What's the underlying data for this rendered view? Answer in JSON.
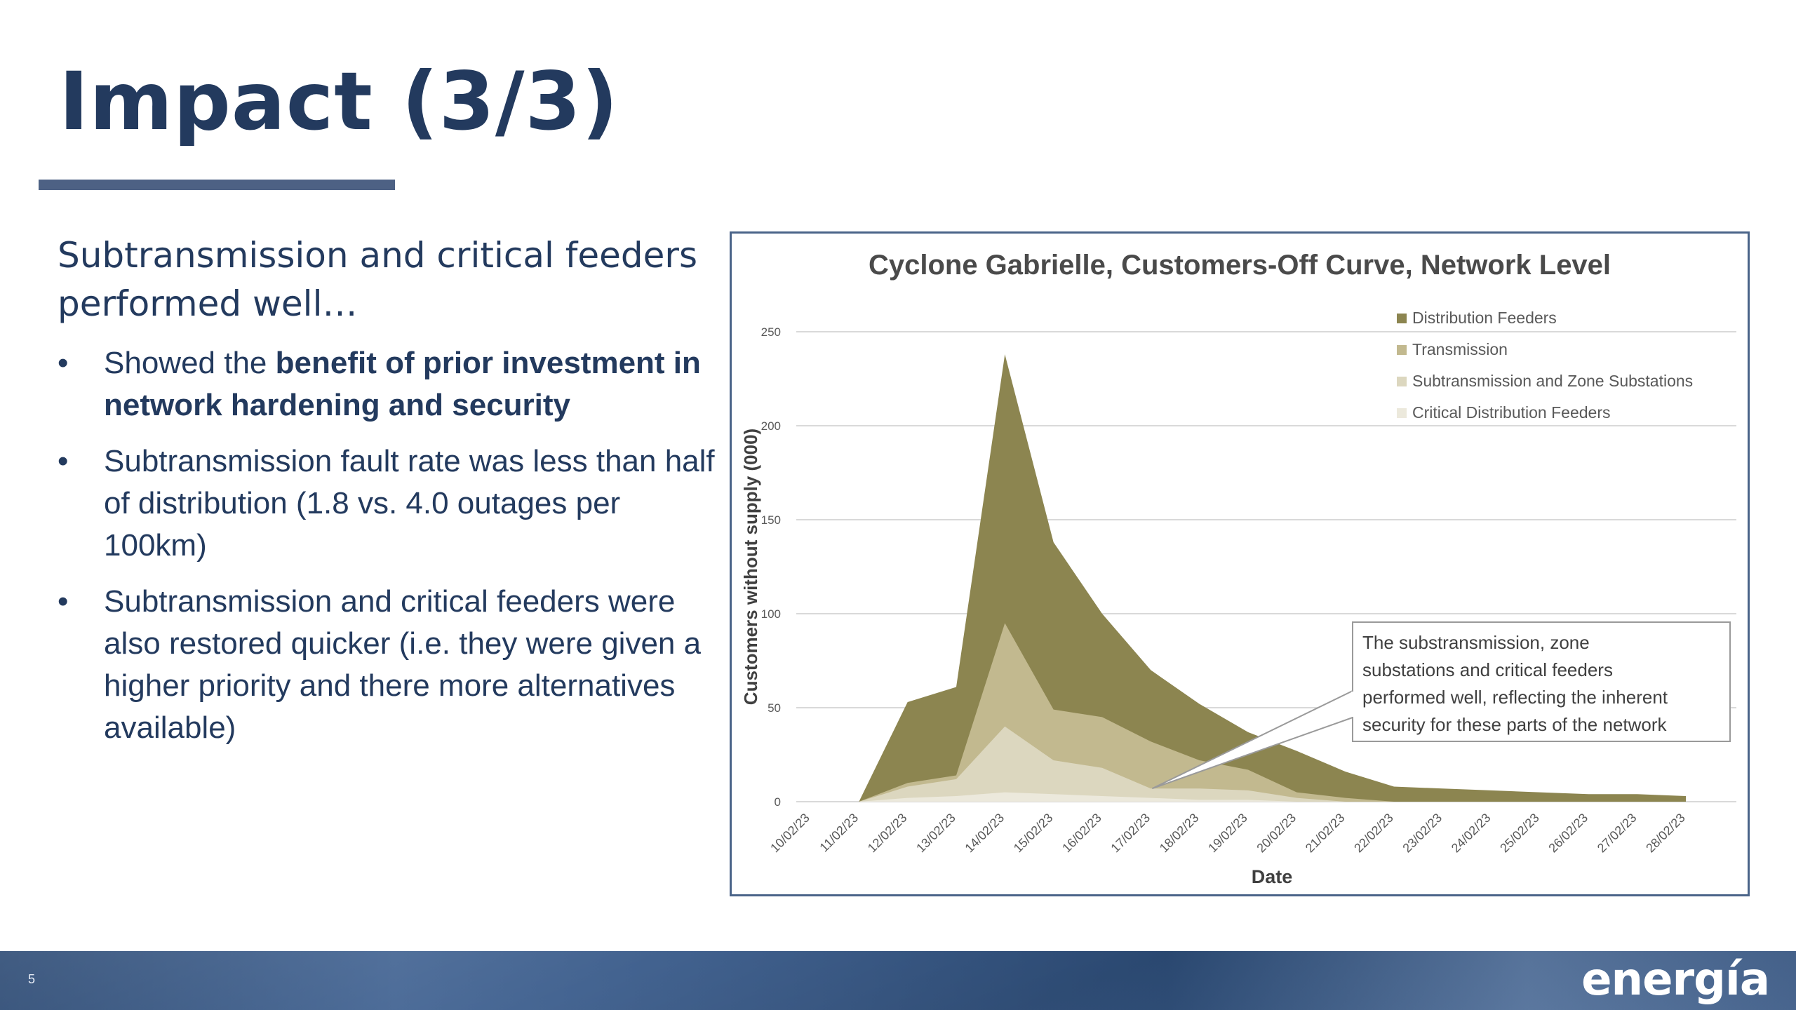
{
  "slide": {
    "title": "Impact (3/3)",
    "lead": "Subtransmission and critical feeders performed well…",
    "bullets": [
      {
        "before": "Showed the ",
        "bold": "benefit of prior investment in network hardening and security",
        "after": ""
      },
      {
        "before": "Subtransmission fault rate was less than half of distribution (1.8 vs. 4.0 outages per 100km)",
        "bold": "",
        "after": ""
      },
      {
        "before": "Subtransmission and critical feeders were also restored quicker (i.e. they were given a higher priority and there more alternatives available)",
        "bold": "",
        "after": ""
      }
    ],
    "bullet_symbol": "•"
  },
  "footer": {
    "page_number": "5",
    "brand": "energía"
  },
  "colors": {
    "title": "#233a5e",
    "rule": "#4d6184",
    "frame": "#4a6489",
    "distribution": "#8c8550",
    "transmission": "#c2b98f",
    "subtransmission": "#dcd7bf",
    "critical": "#ece9dc"
  },
  "chart_data": {
    "type": "area",
    "stacked": false,
    "title": "Cyclone Gabrielle, Customers-Off Curve, Network Level",
    "xlabel": "Date",
    "ylabel": "Customers without supply (000)",
    "ylim": [
      0,
      250
    ],
    "yticks": [
      0,
      50,
      100,
      150,
      200,
      250
    ],
    "grid": true,
    "legend_position": "top-right",
    "x": [
      "10/02/23",
      "11/02/23",
      "12/02/23",
      "13/02/23",
      "14/02/23",
      "15/02/23",
      "16/02/23",
      "17/02/23",
      "18/02/23",
      "19/02/23",
      "20/02/23",
      "21/02/23",
      "22/02/23",
      "23/02/23",
      "24/02/23",
      "25/02/23",
      "26/02/23",
      "27/02/23",
      "28/02/23"
    ],
    "series": [
      {
        "name": "Distribution Feeders",
        "color": "#8c8550",
        "values": [
          null,
          0,
          53,
          61,
          238,
          138,
          100,
          70,
          52,
          37,
          27,
          16,
          8,
          7,
          6,
          5,
          4,
          4,
          3
        ]
      },
      {
        "name": "Transmission",
        "color": "#c2b98f",
        "values": [
          null,
          0,
          10,
          14,
          95,
          49,
          45,
          32,
          22,
          17,
          5,
          2,
          0,
          0,
          0,
          0,
          0,
          0,
          0
        ]
      },
      {
        "name": "Subtransmission and Zone Substations",
        "color": "#dcd7bf",
        "values": [
          null,
          0,
          8,
          12,
          40,
          22,
          18,
          7,
          7,
          6,
          2,
          0,
          0,
          0,
          0,
          0,
          0,
          0,
          0
        ]
      },
      {
        "name": "Critical Distribution Feeders",
        "color": "#ece9dc",
        "values": [
          null,
          0,
          2,
          3,
          5,
          4,
          3,
          2,
          1,
          1,
          0,
          0,
          0,
          0,
          0,
          0,
          0,
          0,
          0
        ]
      }
    ],
    "annotations": [
      {
        "text": "The substransmission, zone substations and critical feeders performed well, reflecting the inherent security for these parts of the network",
        "points_to": "17/02/23"
      }
    ]
  }
}
